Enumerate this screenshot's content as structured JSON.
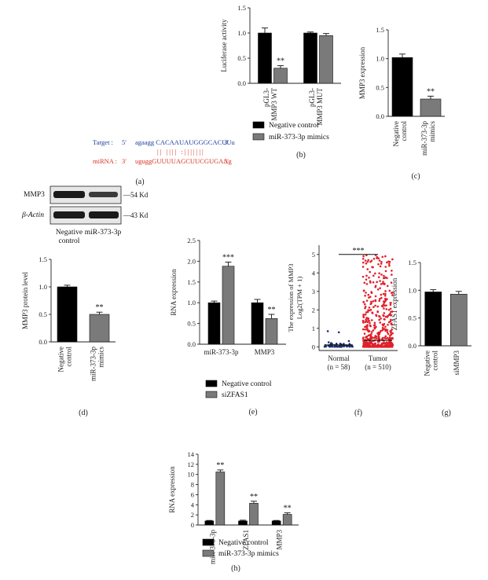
{
  "panels": {
    "a": {
      "letter": "(a)",
      "target_label": "Target :",
      "target_5p": "5′",
      "target_seq": "agaagg CACAAUAUGGGCACUUu",
      "target_3p": "3′",
      "mirna_label": "miRNA :",
      "mirna_3p": "3′",
      "mirna_seq": "uguggGUUUUAGCUUCGUGAAg",
      "mirna_5p": "5′",
      "pairing": "|| |||| :|||||||"
    },
    "d_blot": {
      "row1_label": "MMP3",
      "row1_size": "—54 Kd",
      "row2_label": "β-Actin",
      "row2_size": "—43 Kd",
      "lane1_line1": "Negative",
      "lane1_line2": "control",
      "lane2": "miR-373-3p"
    }
  },
  "colors": {
    "negative_control": "#000000",
    "mimics": "#7a7a7a",
    "target_text": "#1f3e9c",
    "mirna_text": "#d6321f",
    "normal_points": "#1d2f6e",
    "tumor_points": "#e0202a"
  },
  "chart_data": [
    {
      "id": "b",
      "letter": "(b)",
      "type": "bar",
      "ylabel": "Luciferase activity",
      "ylim": [
        0,
        1.5
      ],
      "yticks": [
        "0.0",
        "0.5",
        "1.0",
        "1.5"
      ],
      "yticks_num": [
        0,
        0.5,
        1.0,
        1.5
      ],
      "categories": [
        "pGL3-MMP3 WT",
        "pGL3-MMP3 MUT"
      ],
      "category_lines": [
        [
          "pGL3-",
          "MMP3 WT"
        ],
        [
          "pGL3-",
          "MMP3 MUT"
        ]
      ],
      "series": [
        {
          "name": "Negative control",
          "values": [
            1.0,
            1.0
          ],
          "errors": [
            0.1,
            0.02
          ]
        },
        {
          "name": "miR-373-3p mimics",
          "values": [
            0.3,
            0.95
          ],
          "errors": [
            0.05,
            0.04
          ]
        }
      ],
      "annotations": [
        {
          "category": 0,
          "series": 1,
          "text": "**"
        }
      ],
      "legend": [
        "Negative control",
        "miR-373-3p mimics"
      ]
    },
    {
      "id": "c",
      "letter": "(c)",
      "type": "bar",
      "ylabel": "MMP3 expression",
      "ylim": [
        0,
        1.5
      ],
      "yticks": [
        "0.0",
        "0.5",
        "1.0",
        "1.5"
      ],
      "yticks_num": [
        0,
        0.5,
        1.0,
        1.5
      ],
      "categories": [
        "Negative control",
        "miR-373-3p mimics"
      ],
      "category_lines": [
        [
          "Negative",
          "control"
        ],
        [
          "miR-373-3p",
          "mimics"
        ]
      ],
      "series": [
        {
          "values": [
            1.02,
            0.3
          ],
          "errors": [
            0.06,
            0.05
          ]
        }
      ],
      "bar_colors": [
        "negative_control",
        "mimics"
      ],
      "annotations": [
        {
          "category": 1,
          "text": "**"
        }
      ]
    },
    {
      "id": "d",
      "letter": "(d)",
      "type": "bar",
      "ylabel": "MMP3 protein level",
      "ylim": [
        0,
        1.5
      ],
      "yticks": [
        "0.0",
        "0.5",
        "1.0",
        "1.5"
      ],
      "yticks_num": [
        0,
        0.5,
        1.0,
        1.5
      ],
      "categories": [
        "Negative control",
        "miR-373-3p mimics"
      ],
      "category_lines": [
        [
          "Negative",
          "control"
        ],
        [
          "miR-373-3p",
          "mimics"
        ]
      ],
      "series": [
        {
          "values": [
            1.0,
            0.5
          ],
          "errors": [
            0.03,
            0.04
          ]
        }
      ],
      "bar_colors": [
        "negative_control",
        "mimics"
      ],
      "annotations": [
        {
          "category": 1,
          "text": "**"
        }
      ]
    },
    {
      "id": "e",
      "letter": "(e)",
      "type": "bar",
      "ylabel": "RNA expression",
      "ylim": [
        0,
        2.5
      ],
      "yticks": [
        "0.0",
        "0.5",
        "1.0",
        "1.5",
        "2.0",
        "2.5"
      ],
      "yticks_num": [
        0,
        0.5,
        1.0,
        1.5,
        2.0,
        2.5
      ],
      "categories": [
        "miR-373-3p",
        "MMP3"
      ],
      "category_lines": [
        [
          "miR-373-3p"
        ],
        [
          "MMP3"
        ]
      ],
      "series": [
        {
          "name": "Negative control",
          "values": [
            1.0,
            1.0
          ],
          "errors": [
            0.04,
            0.08
          ]
        },
        {
          "name": "siZFAS1",
          "values": [
            1.88,
            0.62
          ],
          "errors": [
            0.1,
            0.1
          ]
        }
      ],
      "annotations": [
        {
          "category": 0,
          "series": 1,
          "text": "***"
        },
        {
          "category": 1,
          "series": 1,
          "text": "**"
        }
      ],
      "legend": [
        "Negative control",
        "siZFAS1"
      ]
    },
    {
      "id": "f",
      "letter": "(f)",
      "type": "scatter",
      "ylabel_line1": "The expression of MMP3",
      "ylabel_line2": "Log2(TPM + 1)",
      "ylim": [
        -0.2,
        5.5
      ],
      "yticks": [
        "0",
        "1",
        "2",
        "3",
        "4",
        "5"
      ],
      "yticks_num": [
        0,
        1,
        2,
        3,
        4,
        5
      ],
      "categories": [
        "Normal",
        "Tumor"
      ],
      "n_labels": [
        "(n = 58)",
        "(n = 510)"
      ],
      "group_sizes": [
        58,
        510
      ],
      "annotations": [
        {
          "text": "***"
        }
      ]
    },
    {
      "id": "g",
      "letter": "(g)",
      "type": "bar",
      "ylabel": "ZFAS1 expression",
      "ylim": [
        0,
        1.5
      ],
      "yticks": [
        "0.0",
        "0.5",
        "1.0",
        "1.5"
      ],
      "yticks_num": [
        0,
        0.5,
        1.0,
        1.5
      ],
      "categories": [
        "Negative control",
        "siMMP3"
      ],
      "category_lines": [
        [
          "Negative",
          "control"
        ],
        [
          "siMMP3"
        ]
      ],
      "series": [
        {
          "values": [
            0.97,
            0.93
          ],
          "errors": [
            0.04,
            0.05
          ]
        }
      ],
      "bar_colors": [
        "negative_control",
        "mimics"
      ]
    },
    {
      "id": "h",
      "letter": "(h)",
      "type": "bar",
      "ylabel": "RNA expression",
      "ylim": [
        0,
        14
      ],
      "yticks": [
        "0",
        "2",
        "4",
        "6",
        "8",
        "10",
        "12",
        "14"
      ],
      "yticks_num": [
        0,
        2,
        4,
        6,
        8,
        10,
        12,
        14
      ],
      "categories": [
        "miR-373-3p",
        "ZFAS1",
        "MMP3"
      ],
      "category_lines": [
        [
          "miR-373-3p"
        ],
        [
          "ZFAS1"
        ],
        [
          "MMP3"
        ]
      ],
      "series": [
        {
          "name": "Negative control",
          "values": [
            0.8,
            0.8,
            0.8
          ],
          "errors": [
            0.1,
            0.15,
            0.1
          ]
        },
        {
          "name": "miR-373-3p mimics",
          "values": [
            10.5,
            4.3,
            2.1
          ],
          "errors": [
            0.4,
            0.4,
            0.3
          ]
        }
      ],
      "annotations": [
        {
          "category": 0,
          "series": 1,
          "text": "**"
        },
        {
          "category": 1,
          "series": 1,
          "text": "**"
        },
        {
          "category": 2,
          "series": 1,
          "text": "**"
        }
      ],
      "legend": [
        "Negative control",
        "miR-373-3p mimics"
      ]
    }
  ]
}
